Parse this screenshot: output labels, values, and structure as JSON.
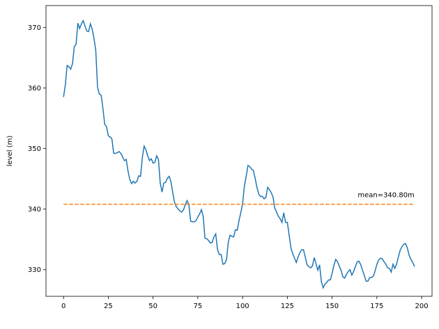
{
  "chart_data": {
    "type": "line",
    "y_label": "level (m)",
    "x": [
      0,
      1,
      2,
      3,
      4,
      5,
      6,
      7,
      8,
      9,
      10,
      11,
      12,
      13,
      14,
      15,
      16,
      17,
      18,
      19,
      20,
      21,
      22,
      23,
      24,
      25,
      26,
      27,
      28,
      29,
      30,
      31,
      32,
      33,
      34,
      35,
      36,
      37,
      38,
      39,
      40,
      41,
      42,
      43,
      44,
      45,
      46,
      47,
      48,
      49,
      50,
      51,
      52,
      53,
      54,
      55,
      56,
      57,
      58,
      59,
      60,
      61,
      62,
      63,
      64,
      65,
      66,
      67,
      68,
      69,
      70,
      71,
      72,
      73,
      74,
      75,
      76,
      77,
      78,
      79,
      80,
      81,
      82,
      83,
      84,
      85,
      86,
      87,
      88,
      89,
      90,
      91,
      92,
      93,
      94,
      95,
      96,
      97,
      98,
      99,
      100,
      101,
      102,
      103,
      104,
      105,
      106,
      107,
      108,
      109,
      110,
      111,
      112,
      113,
      114,
      115,
      116,
      117,
      118,
      119,
      120,
      121,
      122,
      123,
      124,
      125,
      126,
      127,
      128,
      129,
      130,
      131,
      132,
      133,
      134,
      135,
      136,
      137,
      138,
      139,
      140,
      141,
      142,
      143,
      144,
      145,
      146,
      147,
      148,
      149,
      150,
      151,
      152,
      153,
      154,
      155,
      156,
      157,
      158,
      159,
      160,
      161,
      162,
      163,
      164,
      165,
      166,
      167,
      168,
      169,
      170,
      171,
      172,
      173,
      174,
      175,
      176,
      177,
      178,
      179,
      180,
      181,
      182,
      183,
      184,
      185,
      186,
      187,
      188,
      189,
      190,
      191,
      192,
      193,
      194,
      195,
      196
    ],
    "series": [
      {
        "color": "#1f77b4",
        "values": [
          358.5,
          360.5,
          363.7,
          363.5,
          363.1,
          364,
          366.8,
          367.2,
          370.7,
          369.8,
          370.6,
          371.1,
          370.2,
          369.4,
          369.3,
          370.6,
          369.7,
          368.2,
          366.2,
          360.1,
          359,
          358.8,
          356.6,
          354,
          353.6,
          352.1,
          351.9,
          351.6,
          349.2,
          349.2,
          349.3,
          349.5,
          349.2,
          348.6,
          348,
          348.2,
          346.3,
          344.9,
          344.2,
          344.6,
          344.3,
          344.6,
          345.5,
          345.4,
          348.5,
          350.4,
          349.8,
          348.8,
          348,
          348.3,
          347.6,
          347.7,
          348.8,
          348.2,
          344.3,
          342.8,
          344.3,
          344.4,
          345.1,
          345.4,
          344.5,
          342.7,
          341.1,
          340.4,
          340,
          339.7,
          339.5,
          339.9,
          340.7,
          341.4,
          340.7,
          338,
          337.9,
          337.9,
          338.1,
          338.7,
          339.2,
          339.9,
          338.8,
          335.2,
          335.1,
          334.8,
          334.4,
          334.5,
          335.4,
          335.9,
          333.3,
          332.5,
          332.5,
          330.9,
          331,
          331.6,
          334.5,
          335.7,
          335.5,
          335.4,
          336.6,
          336.5,
          338.1,
          339.4,
          340.9,
          343.8,
          345.4,
          347.2,
          347,
          346.6,
          346.4,
          345.1,
          343.6,
          342.5,
          342.1,
          342.1,
          341.7,
          341.9,
          343.6,
          343.2,
          342.7,
          342,
          340.1,
          339.5,
          338.8,
          338.4,
          337.8,
          339.4,
          337.8,
          337.8,
          335.7,
          333.6,
          332.6,
          331.9,
          331.2,
          332.1,
          332.8,
          333.3,
          333.3,
          332.1,
          330.8,
          330.5,
          330.3,
          330.6,
          332,
          331,
          329.9,
          330.8,
          328,
          327,
          327.6,
          327.9,
          328.3,
          328.3,
          329.4,
          330.7,
          331.7,
          331.3,
          330.6,
          329.9,
          328.8,
          328.6,
          329.2,
          329.7,
          330,
          329.1,
          329.7,
          330.5,
          331.3,
          331.4,
          330.8,
          329.9,
          329,
          328.1,
          328.1,
          328.7,
          328.7,
          328.9,
          329.8,
          330.9,
          331.6,
          331.9,
          331.8,
          331.3,
          330.9,
          330.3,
          330.2,
          329.6,
          330.9,
          330.2,
          330.9,
          332.1,
          333.2,
          333.8,
          334.2,
          334.3,
          333.6,
          332.4,
          331.7,
          331.2,
          330.5
        ]
      }
    ],
    "mean_line": {
      "value": 340.8,
      "color": "#ff7f0e",
      "label": "mean=340.80m"
    },
    "xlim": [
      -9.8,
      205.8
    ],
    "ylim": [
      325.6,
      373.6
    ],
    "xticks": [
      0,
      25,
      50,
      75,
      100,
      125,
      150,
      175,
      200
    ],
    "yticks": [
      330,
      340,
      350,
      360,
      370
    ],
    "grid": false
  }
}
